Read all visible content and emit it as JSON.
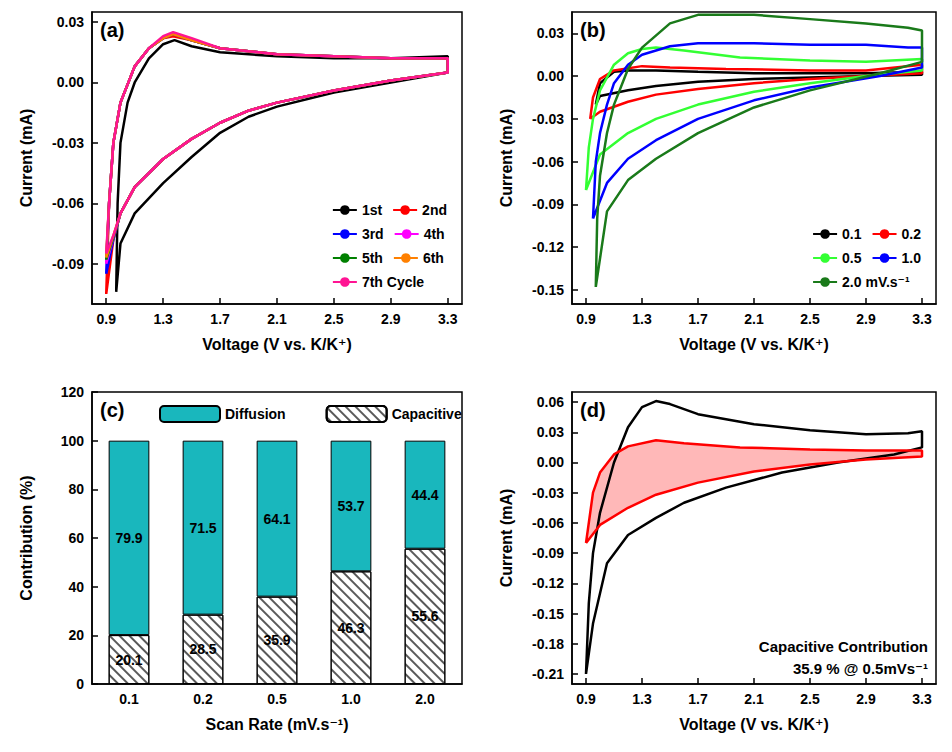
{
  "chart_data": [
    {
      "type": "line",
      "label": "(a)",
      "x_label": "Voltage (V vs. K/K⁺)",
      "y_label": "Current (mA)",
      "xlim": [
        0.8,
        3.4
      ],
      "xticks": [
        0.9,
        1.3,
        1.7,
        2.1,
        2.5,
        2.9,
        3.3
      ],
      "ylim": [
        -0.11,
        0.035
      ],
      "yticks": [
        -0.09,
        -0.06,
        -0.03,
        {
          "value": 0,
          "label": "0.00"
        },
        0.03
      ],
      "grid": false,
      "legend": "lower right",
      "series": [
        {
          "name": "1st",
          "color": "#000000",
          "x": [
            0.97,
            0.98,
            1.0,
            1.05,
            1.1,
            1.2,
            1.3,
            1.38,
            1.5,
            1.7,
            2.1,
            2.5,
            2.9,
            3.3,
            3.3,
            2.9,
            2.5,
            2.1,
            1.9,
            1.7,
            1.5,
            1.3,
            1.1,
            1.0,
            0.97
          ],
          "values": [
            -0.104,
            -0.06,
            -0.03,
            -0.01,
            0.0,
            0.012,
            0.019,
            0.021,
            0.018,
            0.015,
            0.013,
            0.012,
            0.012,
            0.013,
            0.005,
            0.0,
            -0.005,
            -0.012,
            -0.017,
            -0.025,
            -0.037,
            -0.05,
            -0.065,
            -0.08,
            -0.104
          ]
        },
        {
          "name": "2nd",
          "color": "#ff0000",
          "x": [
            0.9,
            0.92,
            0.95,
            1.0,
            1.1,
            1.2,
            1.3,
            1.37,
            1.5,
            1.7,
            2.1,
            2.5,
            2.9,
            3.3,
            3.3,
            2.9,
            2.5,
            2.1,
            1.9,
            1.7,
            1.5,
            1.3,
            1.1,
            1.0,
            0.95,
            0.9
          ],
          "values": [
            -0.105,
            -0.06,
            -0.03,
            -0.01,
            0.008,
            0.017,
            0.022,
            0.023,
            0.021,
            0.017,
            0.014,
            0.013,
            0.012,
            0.012,
            0.005,
            0.001,
            -0.004,
            -0.01,
            -0.014,
            -0.02,
            -0.028,
            -0.038,
            -0.052,
            -0.065,
            -0.078,
            -0.105
          ]
        },
        {
          "name": "3rd",
          "color": "#0000ff",
          "x": [
            0.9,
            0.92,
            0.95,
            1.0,
            1.1,
            1.2,
            1.3,
            1.37,
            1.5,
            1.7,
            2.1,
            2.5,
            2.9,
            3.3,
            3.3,
            2.9,
            2.5,
            2.1,
            1.9,
            1.7,
            1.5,
            1.3,
            1.1,
            1.0,
            0.95,
            0.9
          ],
          "values": [
            -0.095,
            -0.06,
            -0.03,
            -0.01,
            0.008,
            0.017,
            0.022,
            0.024,
            0.021,
            0.017,
            0.014,
            0.013,
            0.012,
            0.012,
            0.005,
            0.001,
            -0.004,
            -0.01,
            -0.014,
            -0.02,
            -0.028,
            -0.038,
            -0.052,
            -0.065,
            -0.078,
            -0.095
          ]
        },
        {
          "name": "4th",
          "color": "#ff00ff",
          "x": [
            0.9,
            0.92,
            0.95,
            1.0,
            1.1,
            1.2,
            1.3,
            1.37,
            1.5,
            1.7,
            2.1,
            2.5,
            2.9,
            3.3,
            3.3,
            2.9,
            2.5,
            2.1,
            1.9,
            1.7,
            1.5,
            1.3,
            1.1,
            1.0,
            0.95,
            0.9
          ],
          "values": [
            -0.09,
            -0.06,
            -0.03,
            -0.01,
            0.008,
            0.017,
            0.022,
            0.024,
            0.021,
            0.017,
            0.014,
            0.013,
            0.012,
            0.012,
            0.005,
            0.001,
            -0.004,
            -0.01,
            -0.014,
            -0.02,
            -0.028,
            -0.038,
            -0.052,
            -0.065,
            -0.077,
            -0.09
          ]
        },
        {
          "name": "5th",
          "color": "#008000",
          "x": [
            0.9,
            0.92,
            0.95,
            1.0,
            1.1,
            1.2,
            1.3,
            1.37,
            1.5,
            1.7,
            2.1,
            2.5,
            2.9,
            3.3,
            3.3,
            2.9,
            2.5,
            2.1,
            1.9,
            1.7,
            1.5,
            1.3,
            1.1,
            1.0,
            0.95,
            0.9
          ],
          "values": [
            -0.088,
            -0.06,
            -0.03,
            -0.01,
            0.008,
            0.017,
            0.022,
            0.024,
            0.021,
            0.017,
            0.014,
            0.013,
            0.012,
            0.012,
            0.005,
            0.001,
            -0.004,
            -0.01,
            -0.014,
            -0.02,
            -0.028,
            -0.038,
            -0.052,
            -0.065,
            -0.077,
            -0.088
          ]
        },
        {
          "name": "6th",
          "color": "#ff8000",
          "x": [
            0.9,
            0.92,
            0.95,
            1.0,
            1.1,
            1.2,
            1.3,
            1.37,
            1.5,
            1.7,
            2.1,
            2.5,
            2.9,
            3.3,
            3.3,
            2.9,
            2.5,
            2.1,
            1.9,
            1.7,
            1.5,
            1.3,
            1.1,
            1.0,
            0.95,
            0.9
          ],
          "values": [
            -0.087,
            -0.06,
            -0.03,
            -0.01,
            0.008,
            0.017,
            0.022,
            0.024,
            0.021,
            0.017,
            0.014,
            0.013,
            0.012,
            0.012,
            0.005,
            0.001,
            -0.004,
            -0.01,
            -0.014,
            -0.02,
            -0.028,
            -0.038,
            -0.052,
            -0.065,
            -0.076,
            -0.087
          ]
        },
        {
          "name": "7th Cycle",
          "color": "#ff1493",
          "x": [
            0.9,
            0.92,
            0.95,
            1.0,
            1.1,
            1.2,
            1.3,
            1.37,
            1.5,
            1.7,
            2.1,
            2.5,
            2.9,
            3.3,
            3.3,
            2.9,
            2.5,
            2.1,
            1.9,
            1.7,
            1.5,
            1.3,
            1.1,
            1.0,
            0.95,
            0.9
          ],
          "values": [
            -0.085,
            -0.06,
            -0.03,
            -0.01,
            0.008,
            0.017,
            0.023,
            0.025,
            0.022,
            0.017,
            0.014,
            0.013,
            0.012,
            0.012,
            0.005,
            0.001,
            -0.004,
            -0.01,
            -0.014,
            -0.02,
            -0.028,
            -0.038,
            -0.052,
            -0.065,
            -0.076,
            -0.085
          ]
        }
      ]
    },
    {
      "type": "line",
      "label": "(b)",
      "x_label": "Voltage (V vs. K/K⁺)",
      "y_label": "Current (mA)",
      "xlim": [
        0.8,
        3.4
      ],
      "xticks": [
        0.9,
        1.3,
        1.7,
        2.1,
        2.5,
        2.9,
        3.3
      ],
      "ylim": [
        -0.16,
        0.045
      ],
      "yticks": [
        -0.15,
        -0.12,
        -0.09,
        -0.06,
        -0.03,
        {
          "value": 0,
          "label": "0.00"
        },
        0.03
      ],
      "grid": false,
      "legend": "lower right",
      "series": [
        {
          "name": "0.1",
          "color": "#000000",
          "x": [
            0.97,
            1.0,
            1.1,
            1.2,
            1.4,
            1.7,
            2.1,
            2.5,
            2.9,
            3.3,
            3.3,
            2.9,
            2.5,
            2.1,
            1.7,
            1.4,
            1.2,
            1.0,
            0.97
          ],
          "values": [
            -0.02,
            -0.005,
            0.003,
            0.004,
            0.004,
            0.003,
            0.002,
            0.002,
            0.002,
            0.003,
            0.001,
            0.0,
            -0.001,
            -0.002,
            -0.004,
            -0.007,
            -0.01,
            -0.014,
            -0.02
          ]
        },
        {
          "name": "0.2",
          "color": "#ff0000",
          "x": [
            0.93,
            0.95,
            1.0,
            1.1,
            1.3,
            1.5,
            1.9,
            2.5,
            2.9,
            3.3,
            3.3,
            2.9,
            2.5,
            2.1,
            1.7,
            1.4,
            1.2,
            1.0,
            0.93
          ],
          "values": [
            -0.03,
            -0.015,
            -0.002,
            0.004,
            0.007,
            0.006,
            0.005,
            0.004,
            0.004,
            0.008,
            0.002,
            0.0,
            -0.002,
            -0.005,
            -0.009,
            -0.013,
            -0.018,
            -0.025,
            -0.03
          ]
        },
        {
          "name": "0.5",
          "color": "#33ff33",
          "x": [
            0.9,
            0.92,
            0.95,
            1.0,
            1.1,
            1.2,
            1.3,
            1.4,
            1.6,
            2.0,
            2.5,
            2.9,
            3.3,
            3.3,
            2.9,
            2.5,
            2.1,
            1.7,
            1.4,
            1.2,
            1.0,
            0.9
          ],
          "values": [
            -0.08,
            -0.05,
            -0.03,
            -0.01,
            0.008,
            0.016,
            0.019,
            0.02,
            0.018,
            0.013,
            0.011,
            0.01,
            0.012,
            0.004,
            0.0,
            -0.005,
            -0.011,
            -0.02,
            -0.03,
            -0.04,
            -0.055,
            -0.08
          ]
        },
        {
          "name": "1.0",
          "color": "#0000ff",
          "x": [
            0.95,
            0.97,
            1.0,
            1.05,
            1.1,
            1.2,
            1.3,
            1.5,
            1.7,
            2.1,
            2.5,
            2.9,
            3.2,
            3.3,
            3.3,
            3.0,
            2.5,
            2.1,
            1.7,
            1.4,
            1.2,
            1.05,
            0.95
          ],
          "values": [
            -0.1,
            -0.06,
            -0.04,
            -0.02,
            -0.005,
            0.008,
            0.015,
            0.021,
            0.023,
            0.023,
            0.022,
            0.022,
            0.02,
            0.02,
            0.006,
            0.0,
            -0.008,
            -0.017,
            -0.03,
            -0.045,
            -0.058,
            -0.075,
            -0.1
          ]
        },
        {
          "name": "2.0 mV.s⁻¹",
          "color": "#1a7a1a",
          "x": [
            0.97,
            0.98,
            1.0,
            1.05,
            1.1,
            1.2,
            1.3,
            1.5,
            1.7,
            2.1,
            2.5,
            2.9,
            3.2,
            3.3,
            3.3,
            3.0,
            2.5,
            2.1,
            1.7,
            1.4,
            1.2,
            1.05,
            0.97
          ],
          "values": [
            -0.148,
            -0.1,
            -0.07,
            -0.04,
            -0.02,
            0.005,
            0.02,
            0.037,
            0.043,
            0.043,
            0.04,
            0.037,
            0.034,
            0.032,
            0.01,
            0.002,
            -0.01,
            -0.022,
            -0.04,
            -0.058,
            -0.073,
            -0.095,
            -0.148
          ]
        }
      ]
    },
    {
      "type": "bar",
      "label": "(c)",
      "x_label": "Scan Rate (mV.s⁻¹)",
      "y_label": "Contribution (%)",
      "categories": [
        "0.1",
        "0.2",
        "0.5",
        "1.0",
        "2.0"
      ],
      "ylim": [
        0,
        120
      ],
      "yticks": [
        0,
        20,
        40,
        60,
        80,
        100,
        120
      ],
      "grid": false,
      "legend": "top",
      "stacked": true,
      "data_labels": true,
      "series": [
        {
          "name": "Diffusion",
          "color": "#19b7bd",
          "values": [
            79.9,
            71.5,
            64.1,
            53.7,
            44.4
          ]
        },
        {
          "name": "Capacitive",
          "color": "#ffffff",
          "marker": "hatch",
          "values": [
            20.1,
            28.5,
            35.9,
            46.3,
            55.6
          ]
        }
      ]
    },
    {
      "type": "line",
      "label": "(d)",
      "x_label": "Voltage (V vs. K/K⁺)",
      "y_label": "Current (mA)",
      "xlim": [
        0.8,
        3.4
      ],
      "xticks": [
        0.9,
        1.3,
        1.7,
        2.1,
        2.5,
        2.9,
        3.3
      ],
      "ylim": [
        -0.22,
        0.07
      ],
      "yticks": [
        -0.21,
        -0.18,
        -0.15,
        -0.12,
        -0.09,
        -0.06,
        -0.03,
        {
          "value": 0,
          "label": "0.00"
        },
        0.03,
        0.06
      ],
      "grid": false,
      "annotations": [
        "Capacitive Contribution",
        "35.9 % @ 0.5mVs⁻¹"
      ],
      "series": [
        {
          "type": "line",
          "color": "#000000",
          "x": [
            0.9,
            0.92,
            0.95,
            1.0,
            1.1,
            1.2,
            1.3,
            1.4,
            1.5,
            1.7,
            2.1,
            2.5,
            2.9,
            3.2,
            3.3,
            3.3,
            3.1,
            2.7,
            2.3,
            1.9,
            1.6,
            1.4,
            1.2,
            1.05,
            0.95,
            0.9
          ],
          "values": [
            -0.21,
            -0.14,
            -0.09,
            -0.05,
            0.0,
            0.035,
            0.055,
            0.061,
            0.058,
            0.048,
            0.038,
            0.032,
            0.028,
            0.029,
            0.031,
            0.015,
            0.008,
            0.0,
            -0.01,
            -0.025,
            -0.04,
            -0.055,
            -0.072,
            -0.1,
            -0.16,
            -0.21
          ]
        },
        {
          "type": "area",
          "color": "#ff0000",
          "x": [
            0.9,
            0.95,
            1.0,
            1.1,
            1.2,
            1.4,
            1.6,
            2.0,
            2.5,
            2.9,
            3.3,
            3.3,
            2.9,
            2.5,
            2.1,
            1.7,
            1.4,
            1.2,
            1.0,
            0.9
          ],
          "values": [
            -0.08,
            -0.03,
            -0.01,
            0.008,
            0.016,
            0.022,
            0.019,
            0.015,
            0.013,
            0.012,
            0.012,
            0.006,
            0.003,
            -0.002,
            -0.009,
            -0.02,
            -0.032,
            -0.045,
            -0.062,
            -0.08
          ]
        }
      ]
    }
  ]
}
